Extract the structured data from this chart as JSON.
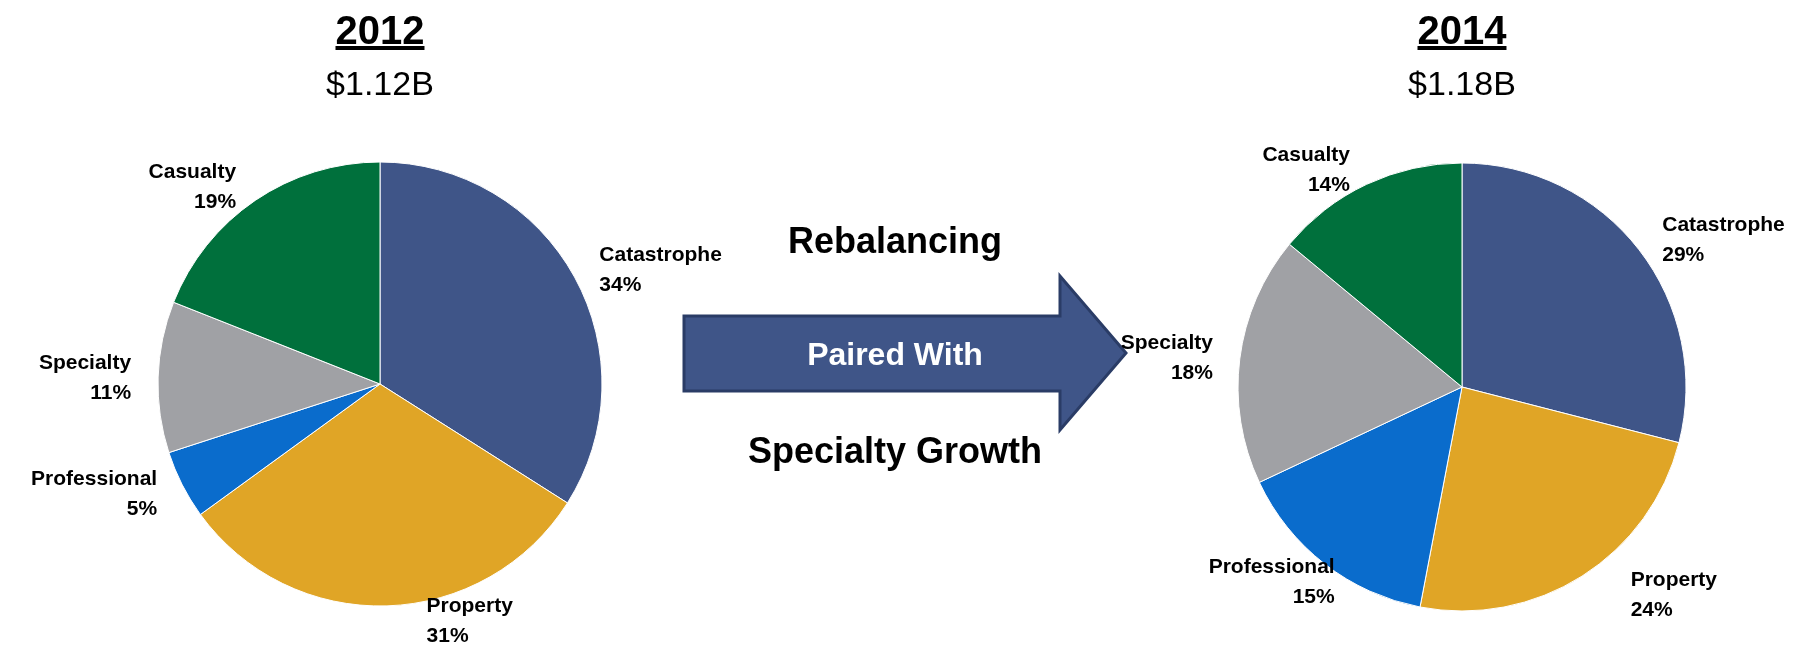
{
  "chart_data": [
    {
      "type": "pie",
      "title": "2012",
      "subtitle": "$1.12B",
      "categories": [
        "Catastrophe",
        "Property",
        "Professional",
        "Specialty",
        "Casualty"
      ],
      "values": [
        34,
        31,
        5,
        11,
        19
      ],
      "value_labels": [
        "34%",
        "31%",
        "5%",
        "11%",
        "19%"
      ],
      "colors": [
        "#3f5588",
        "#e0a526",
        "#0a6ccc",
        "#a0a1a5",
        "#00703c"
      ]
    },
    {
      "type": "other",
      "annotations": [
        "Rebalancing",
        "Paired With",
        "Specialty Growth"
      ]
    },
    {
      "type": "pie",
      "title": "2014",
      "subtitle": "$1.18B",
      "categories": [
        "Catastrophe",
        "Property",
        "Professional",
        "Specialty",
        "Casualty"
      ],
      "values": [
        29,
        24,
        15,
        18,
        14
      ],
      "value_labels": [
        "29%",
        "24%",
        "15%",
        "18%",
        "14%"
      ],
      "colors": [
        "#3f5588",
        "#e0a526",
        "#0a6ccc",
        "#a0a1a5",
        "#00703c"
      ]
    }
  ]
}
